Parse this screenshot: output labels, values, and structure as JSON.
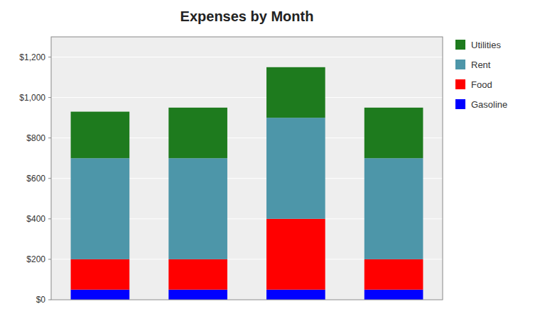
{
  "chart_data": {
    "type": "bar",
    "stacked": true,
    "title": "Expenses by Month",
    "categories": [
      null,
      null,
      null,
      null
    ],
    "series": [
      {
        "name": "Gasoline",
        "color": "#0000FF",
        "values": [
          50,
          50,
          50,
          50
        ]
      },
      {
        "name": "Food",
        "color": "#FF0000",
        "values": [
          150,
          150,
          350,
          150
        ]
      },
      {
        "name": "Rent",
        "color": "#4D96A9",
        "values": [
          500,
          500,
          500,
          500
        ]
      },
      {
        "name": "Utilities",
        "color": "#1E7B1E",
        "values": [
          230,
          250,
          250,
          250
        ]
      }
    ],
    "ylim": [
      0,
      1300
    ],
    "yticks": [
      {
        "value": 0,
        "label": "$0"
      },
      {
        "value": 200,
        "label": "$200"
      },
      {
        "value": 400,
        "label": "$400"
      },
      {
        "value": 600,
        "label": "$600"
      },
      {
        "value": 800,
        "label": "$800"
      },
      {
        "value": 1000,
        "label": "$1,000"
      },
      {
        "value": 1200,
        "label": "$1,200"
      }
    ],
    "grid": true,
    "legend": "right"
  }
}
